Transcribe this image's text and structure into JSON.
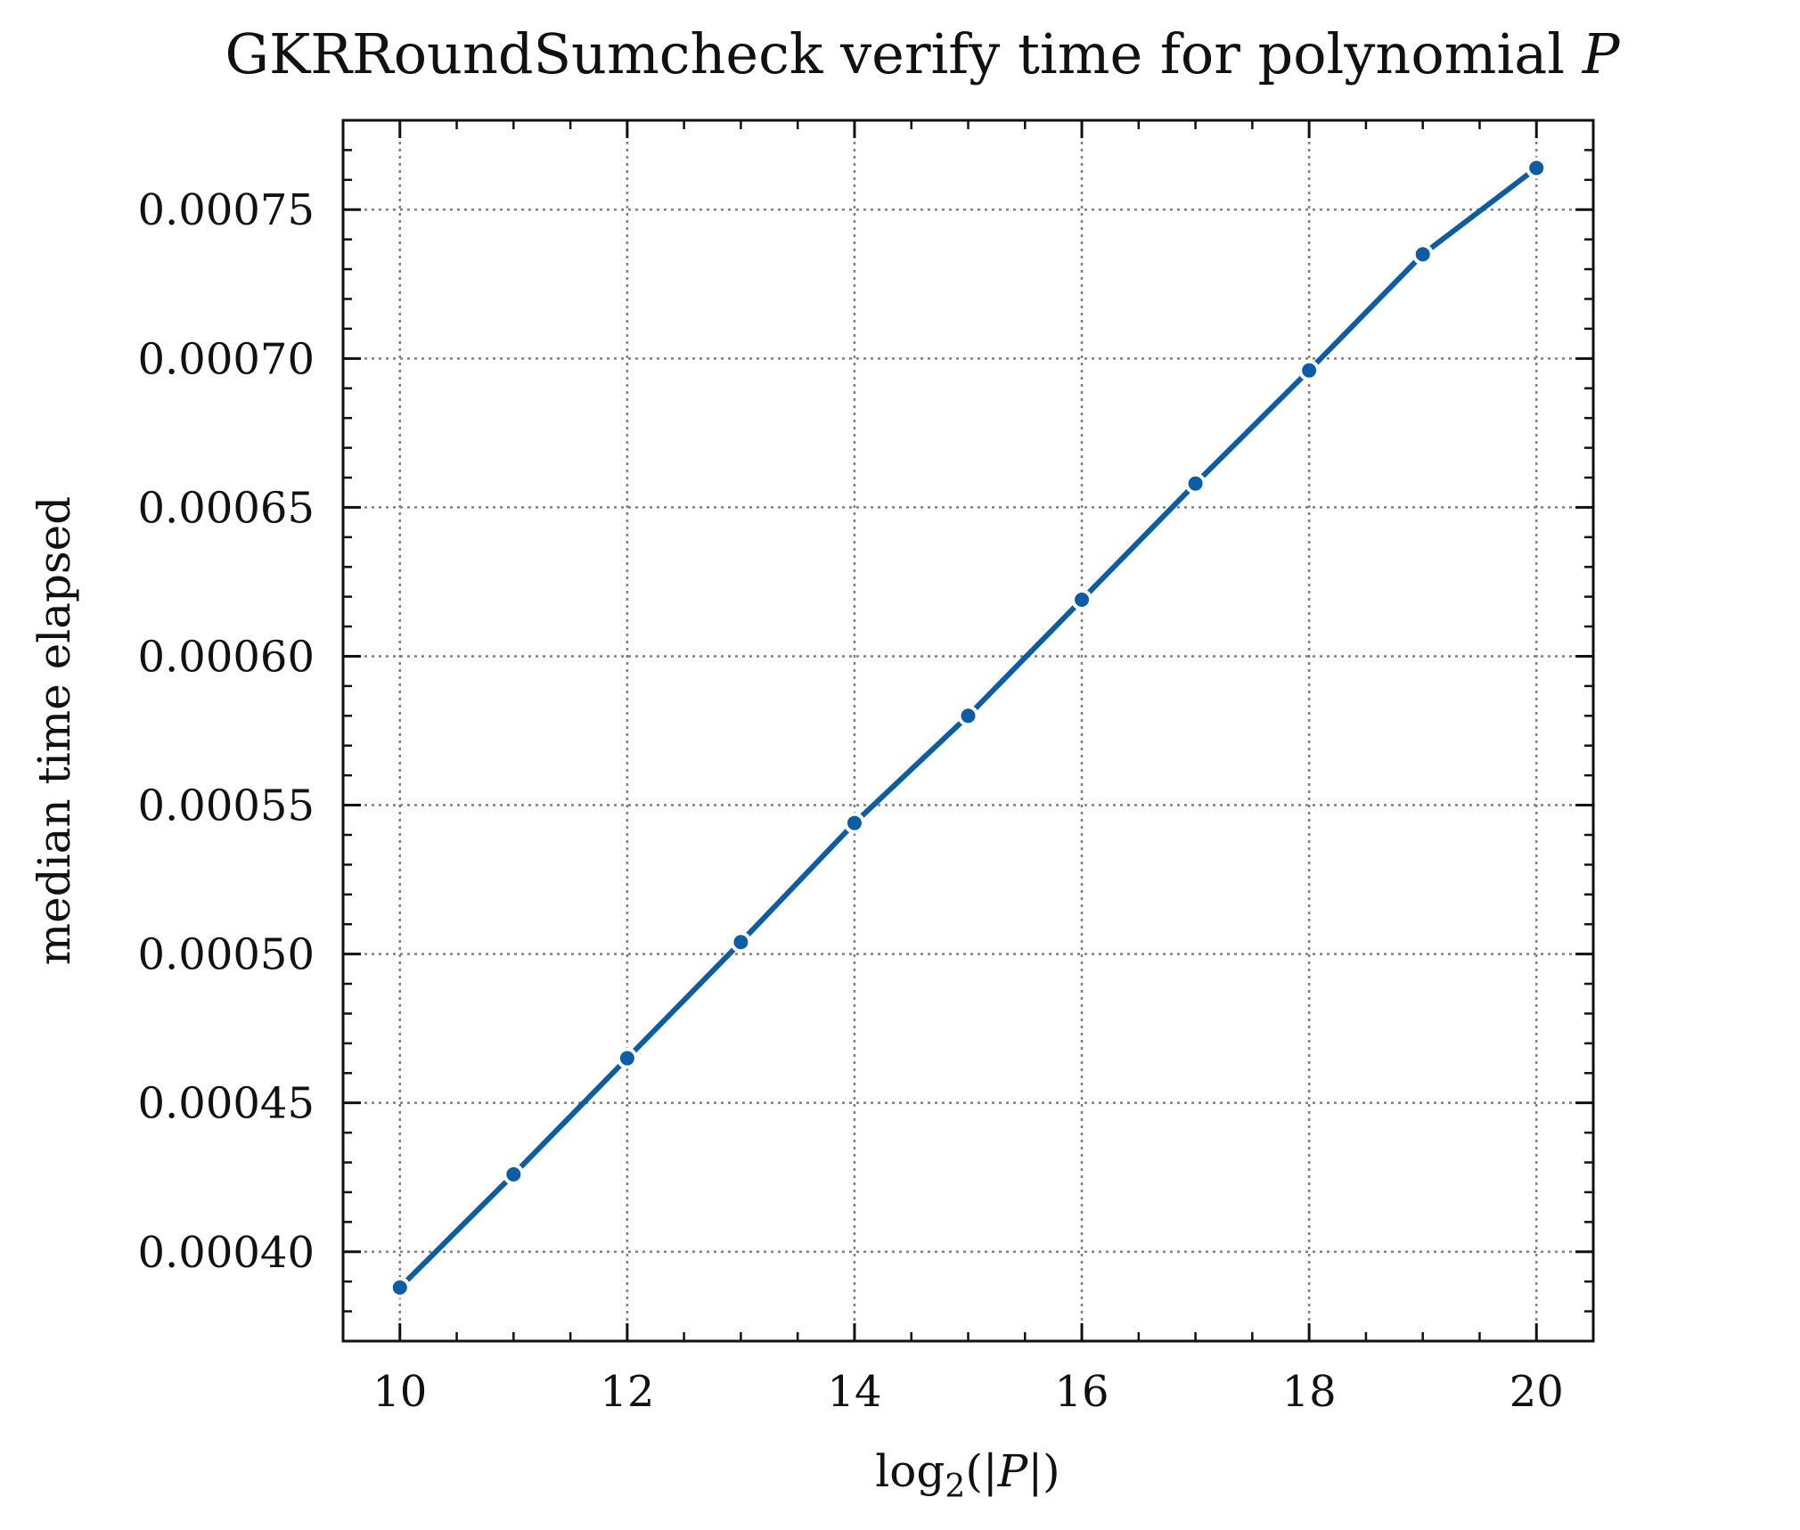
{
  "chart_data": {
    "type": "line",
    "title": "GKRRoundSumcheck verify time for polynomial P",
    "xlabel": "log₂(|P|)",
    "ylabel": "median time elapsed",
    "xlim": [
      9.5,
      20.5
    ],
    "ylim": [
      0.00037,
      0.00078
    ],
    "x_ticks": [
      10,
      12,
      14,
      16,
      18,
      20
    ],
    "y_ticks": [
      0.0004,
      0.00045,
      0.0005,
      0.00055,
      0.0006,
      0.00065,
      0.0007,
      0.00075
    ],
    "x_tick_labels": [
      "10",
      "12",
      "14",
      "16",
      "18",
      "20"
    ],
    "y_tick_labels": [
      "0.00040",
      "0.00045",
      "0.00050",
      "0.00055",
      "0.00060",
      "0.00065",
      "0.00070",
      "0.00075"
    ],
    "grid": true,
    "series": [
      {
        "color": "#0c5da5",
        "x": [
          10,
          11,
          12,
          13,
          14,
          15,
          16,
          17,
          18,
          19,
          20
        ],
        "y": [
          0.000388,
          0.000426,
          0.000465,
          0.000504,
          0.000544,
          0.00058,
          0.000619,
          0.000658,
          0.000696,
          0.000735,
          0.000764
        ]
      }
    ]
  }
}
